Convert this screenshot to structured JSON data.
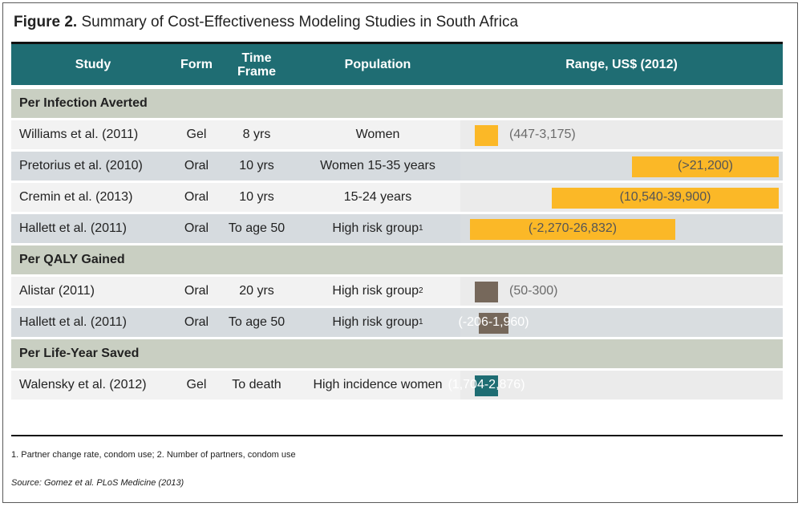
{
  "title": {
    "figure_label": "Figure 2.",
    "text": "Summary of Cost-Effectiveness Modeling Studies in South Africa"
  },
  "header": {
    "study": "Study",
    "form": "Form",
    "time_frame_line1": "Time",
    "time_frame_line2": "Frame",
    "population": "Population",
    "range": "Range, US$ (2012)"
  },
  "colors": {
    "header_bg": "#1f6d73",
    "section_bg": "#c9cfc2",
    "infection_bar": "#fbb827",
    "qaly_bar": "#76685b",
    "lifeyear_bar": "#1f6d73"
  },
  "chart_data": {
    "type": "table",
    "unit": "US$ (2012)",
    "sections": [
      {
        "label": "Per Infection Averted",
        "rows": [
          {
            "study": "Williams et al. (2011)",
            "form": "Gel",
            "time_frame": "8 yrs",
            "population": "Women",
            "sup": "",
            "range_label": "(447-3,175)",
            "low": 447,
            "high": 3175,
            "label_inside": false
          },
          {
            "study": "Pretorius et al. (2010)",
            "form": "Oral",
            "time_frame": "10 yrs",
            "population": "Women 15-35 years",
            "sup": "",
            "range_label": "(>21,200)",
            "low": 21200,
            "high": null,
            "label_inside": true
          },
          {
            "study": "Cremin et al. (2013)",
            "form": "Oral",
            "time_frame": "10 yrs",
            "population": "15-24 years",
            "sup": "",
            "range_label": "(10,540-39,900)",
            "low": 10540,
            "high": 39900,
            "label_inside": true
          },
          {
            "study": "Hallett et al. (2011)",
            "form": "Oral",
            "time_frame": "To age 50",
            "population": "High risk group",
            "sup": "1",
            "range_label": "(-2,270-26,832)",
            "low": -2270,
            "high": 26832,
            "label_inside": true
          }
        ]
      },
      {
        "label": "Per QALY Gained",
        "rows": [
          {
            "study": "Alistar (2011)",
            "form": "Oral",
            "time_frame": "20 yrs",
            "population": "High risk group",
            "sup": "2",
            "range_label": "(50-300)",
            "low": 50,
            "high": 300,
            "label_inside": false
          },
          {
            "study": "Hallett et al. (2011)",
            "form": "Oral",
            "time_frame": "To age 50",
            "population": "High risk group",
            "sup": "1",
            "range_label": "(-206-1,960)",
            "low": -206,
            "high": 1960,
            "label_inside": true
          }
        ]
      },
      {
        "label": "Per Life-Year Saved",
        "rows": [
          {
            "study": "Walensky et al. (2012)",
            "form": "Gel",
            "time_frame": "To death",
            "population": "High incidence women",
            "sup": "",
            "range_label": "(1,704-2,876)",
            "low": 1704,
            "high": 2876,
            "label_inside": true
          }
        ]
      }
    ]
  },
  "footnote": "1. Partner change rate, condom use; 2. Number of partners, condom use",
  "source": "Source: Gomez et al. PLoS Medicine (2013)"
}
